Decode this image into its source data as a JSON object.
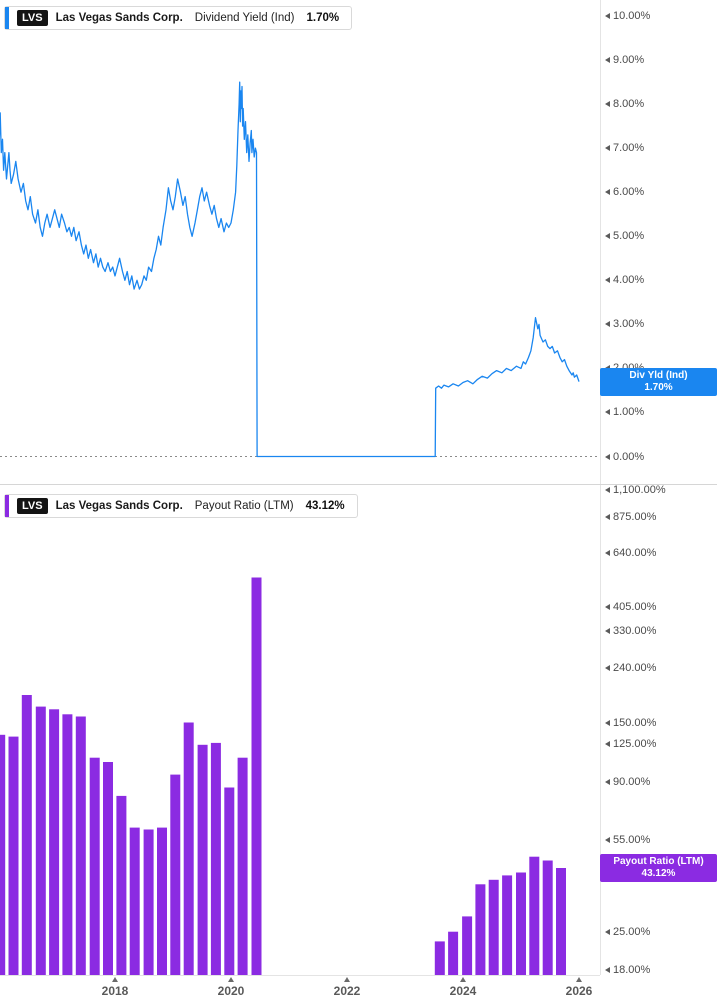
{
  "colors": {
    "blue": "#1a86f0",
    "purple": "#8b2be2",
    "axis_text": "#4a4a4a",
    "zero_line": "#8a8a8a"
  },
  "top_panel": {
    "legend": {
      "ticker": "LVS",
      "company": "Las Vegas Sands Corp.",
      "metric": "Dividend Yield (Ind)",
      "value": "1.70%"
    },
    "badge": {
      "line1": "Div Yld (Ind)",
      "line2": "1.70%"
    },
    "axis_ticks": [
      "10.00%",
      "9.00%",
      "8.00%",
      "7.00%",
      "6.00%",
      "5.00%",
      "4.00%",
      "3.00%",
      "2.00%",
      "1.00%",
      "0.00%"
    ]
  },
  "bottom_panel": {
    "legend": {
      "ticker": "LVS",
      "company": "Las Vegas Sands Corp.",
      "metric": "Payout Ratio (LTM)",
      "value": "43.12%"
    },
    "badge": {
      "line1": "Payout Ratio (LTM)",
      "line2": "43.12%"
    },
    "axis_ticks": [
      "1,100.00%",
      "875.00%",
      "640.00%",
      "405.00%",
      "330.00%",
      "240.00%",
      "150.00%",
      "125.00%",
      "90.00%",
      "55.00%",
      "25.00%",
      "18.00%"
    ]
  },
  "x_axis": {
    "years": [
      "2018",
      "2020",
      "2022",
      "2024",
      "2026"
    ]
  },
  "chart_data": [
    {
      "type": "line",
      "title": "LVS Dividend Yield (Ind)",
      "unit": "percent",
      "color": "#1a86f0",
      "x_axis": {
        "min": 2016,
        "max": 2026.2,
        "tick_years": [
          2018,
          2020,
          2022,
          2024,
          2026
        ]
      },
      "y_axis": {
        "scale": "linear",
        "min": 0,
        "max": 10.3,
        "ticks": [
          10,
          9,
          8,
          7,
          6,
          5,
          4,
          3,
          2,
          1,
          0
        ]
      },
      "zero_line_dotted": true,
      "last_value": 1.7,
      "points": [
        [
          2016.0,
          7.0
        ],
        [
          2016.02,
          7.8
        ],
        [
          2016.04,
          6.9
        ],
        [
          2016.06,
          7.2
        ],
        [
          2016.08,
          6.5
        ],
        [
          2016.1,
          6.9
        ],
        [
          2016.13,
          6.3
        ],
        [
          2016.15,
          6.6
        ],
        [
          2016.17,
          6.9
        ],
        [
          2016.19,
          6.5
        ],
        [
          2016.21,
          6.2
        ],
        [
          2016.25,
          6.4
        ],
        [
          2016.29,
          6.7
        ],
        [
          2016.33,
          6.3
        ],
        [
          2016.38,
          6.0
        ],
        [
          2016.42,
          6.2
        ],
        [
          2016.46,
          5.8
        ],
        [
          2016.5,
          5.6
        ],
        [
          2016.54,
          5.9
        ],
        [
          2016.58,
          5.5
        ],
        [
          2016.63,
          5.3
        ],
        [
          2016.67,
          5.6
        ],
        [
          2016.71,
          5.2
        ],
        [
          2016.75,
          5.0
        ],
        [
          2016.79,
          5.3
        ],
        [
          2016.83,
          5.5
        ],
        [
          2016.88,
          5.2
        ],
        [
          2016.92,
          5.4
        ],
        [
          2016.96,
          5.6
        ],
        [
          2017.0,
          5.4
        ],
        [
          2017.04,
          5.2
        ],
        [
          2017.08,
          5.5
        ],
        [
          2017.13,
          5.3
        ],
        [
          2017.17,
          5.1
        ],
        [
          2017.21,
          5.2
        ],
        [
          2017.25,
          5.0
        ],
        [
          2017.29,
          5.2
        ],
        [
          2017.33,
          4.9
        ],
        [
          2017.38,
          5.1
        ],
        [
          2017.42,
          4.8
        ],
        [
          2017.46,
          4.6
        ],
        [
          2017.5,
          4.8
        ],
        [
          2017.54,
          4.5
        ],
        [
          2017.58,
          4.7
        ],
        [
          2017.63,
          4.4
        ],
        [
          2017.67,
          4.6
        ],
        [
          2017.71,
          4.3
        ],
        [
          2017.75,
          4.5
        ],
        [
          2017.79,
          4.3
        ],
        [
          2017.83,
          4.2
        ],
        [
          2017.88,
          4.4
        ],
        [
          2017.92,
          4.2
        ],
        [
          2017.96,
          4.3
        ],
        [
          2018.0,
          4.1
        ],
        [
          2018.04,
          4.3
        ],
        [
          2018.08,
          4.5
        ],
        [
          2018.13,
          4.2
        ],
        [
          2018.17,
          4.0
        ],
        [
          2018.21,
          4.2
        ],
        [
          2018.25,
          3.9
        ],
        [
          2018.29,
          4.1
        ],
        [
          2018.33,
          3.8
        ],
        [
          2018.38,
          4.0
        ],
        [
          2018.42,
          3.8
        ],
        [
          2018.46,
          3.9
        ],
        [
          2018.5,
          4.1
        ],
        [
          2018.54,
          4.0
        ],
        [
          2018.58,
          4.3
        ],
        [
          2018.63,
          4.2
        ],
        [
          2018.67,
          4.5
        ],
        [
          2018.71,
          4.7
        ],
        [
          2018.75,
          5.0
        ],
        [
          2018.79,
          4.8
        ],
        [
          2018.83,
          5.2
        ],
        [
          2018.88,
          5.6
        ],
        [
          2018.92,
          6.1
        ],
        [
          2018.96,
          5.8
        ],
        [
          2019.0,
          5.6
        ],
        [
          2019.04,
          5.9
        ],
        [
          2019.08,
          6.3
        ],
        [
          2019.13,
          6.0
        ],
        [
          2019.17,
          5.7
        ],
        [
          2019.21,
          5.9
        ],
        [
          2019.25,
          5.5
        ],
        [
          2019.29,
          5.2
        ],
        [
          2019.33,
          5.0
        ],
        [
          2019.38,
          5.3
        ],
        [
          2019.42,
          5.6
        ],
        [
          2019.46,
          5.9
        ],
        [
          2019.5,
          6.1
        ],
        [
          2019.54,
          5.8
        ],
        [
          2019.58,
          6.0
        ],
        [
          2019.63,
          5.7
        ],
        [
          2019.67,
          5.5
        ],
        [
          2019.71,
          5.7
        ],
        [
          2019.75,
          5.4
        ],
        [
          2019.79,
          5.2
        ],
        [
          2019.83,
          5.4
        ],
        [
          2019.88,
          5.1
        ],
        [
          2019.92,
          5.3
        ],
        [
          2019.96,
          5.2
        ],
        [
          2020.0,
          5.3
        ],
        [
          2020.04,
          5.6
        ],
        [
          2020.08,
          6.0
        ],
        [
          2020.1,
          6.6
        ],
        [
          2020.12,
          7.4
        ],
        [
          2020.14,
          8.0
        ],
        [
          2020.15,
          8.5
        ],
        [
          2020.16,
          7.6
        ],
        [
          2020.17,
          8.3
        ],
        [
          2020.18,
          7.9
        ],
        [
          2020.19,
          8.4
        ],
        [
          2020.2,
          7.5
        ],
        [
          2020.21,
          7.9
        ],
        [
          2020.23,
          7.2
        ],
        [
          2020.25,
          7.6
        ],
        [
          2020.27,
          6.9
        ],
        [
          2020.29,
          7.3
        ],
        [
          2020.31,
          6.7
        ],
        [
          2020.33,
          7.1
        ],
        [
          2020.35,
          7.4
        ],
        [
          2020.36,
          6.9
        ],
        [
          2020.38,
          7.2
        ],
        [
          2020.4,
          6.8
        ],
        [
          2020.42,
          7.0
        ],
        [
          2020.44,
          6.9
        ],
        [
          2020.45,
          0.0
        ],
        [
          2023.52,
          0.0
        ],
        [
          2023.53,
          1.55
        ],
        [
          2023.58,
          1.6
        ],
        [
          2023.63,
          1.55
        ],
        [
          2023.67,
          1.62
        ],
        [
          2023.75,
          1.58
        ],
        [
          2023.83,
          1.65
        ],
        [
          2023.92,
          1.6
        ],
        [
          2024.0,
          1.68
        ],
        [
          2024.08,
          1.72
        ],
        [
          2024.17,
          1.65
        ],
        [
          2024.25,
          1.75
        ],
        [
          2024.33,
          1.82
        ],
        [
          2024.42,
          1.78
        ],
        [
          2024.5,
          1.88
        ],
        [
          2024.58,
          1.95
        ],
        [
          2024.67,
          1.9
        ],
        [
          2024.75,
          2.0
        ],
        [
          2024.83,
          1.95
        ],
        [
          2024.92,
          2.05
        ],
        [
          2025.0,
          2.0
        ],
        [
          2025.04,
          2.15
        ],
        [
          2025.08,
          2.1
        ],
        [
          2025.13,
          2.25
        ],
        [
          2025.17,
          2.4
        ],
        [
          2025.21,
          2.7
        ],
        [
          2025.25,
          3.15
        ],
        [
          2025.29,
          2.9
        ],
        [
          2025.31,
          3.0
        ],
        [
          2025.33,
          2.75
        ],
        [
          2025.38,
          2.6
        ],
        [
          2025.42,
          2.65
        ],
        [
          2025.46,
          2.5
        ],
        [
          2025.5,
          2.45
        ],
        [
          2025.54,
          2.5
        ],
        [
          2025.58,
          2.35
        ],
        [
          2025.63,
          2.4
        ],
        [
          2025.67,
          2.25
        ],
        [
          2025.71,
          2.15
        ],
        [
          2025.75,
          2.2
        ],
        [
          2025.79,
          2.05
        ],
        [
          2025.83,
          1.95
        ],
        [
          2025.88,
          1.85
        ],
        [
          2025.9,
          1.9
        ],
        [
          2025.92,
          1.8
        ],
        [
          2025.96,
          1.85
        ],
        [
          2026.0,
          1.7
        ]
      ]
    },
    {
      "type": "bar",
      "title": "LVS Payout Ratio (LTM)",
      "unit": "percent",
      "color": "#8b2be2",
      "y_axis": {
        "scale": "log",
        "min": 18,
        "max": 1100,
        "ticks": [
          1100,
          875,
          640,
          405,
          330,
          240,
          150,
          125,
          90,
          55,
          25,
          18
        ]
      },
      "last_value": 43.12,
      "bars": [
        [
          2016.02,
          135
        ],
        [
          2016.25,
          133
        ],
        [
          2016.48,
          190
        ],
        [
          2016.72,
          172
        ],
        [
          2016.95,
          168
        ],
        [
          2017.18,
          161
        ],
        [
          2017.41,
          158
        ],
        [
          2017.65,
          111
        ],
        [
          2017.88,
          107
        ],
        [
          2018.11,
          80
        ],
        [
          2018.34,
          61
        ],
        [
          2018.58,
          60
        ],
        [
          2018.81,
          61
        ],
        [
          2019.04,
          96
        ],
        [
          2019.27,
          150
        ],
        [
          2019.51,
          124
        ],
        [
          2019.74,
          126
        ],
        [
          2019.97,
          86
        ],
        [
          2020.2,
          111
        ],
        [
          2020.44,
          520
        ],
        [
          2023.6,
          23
        ],
        [
          2023.83,
          25
        ],
        [
          2024.07,
          28.5
        ],
        [
          2024.3,
          37.5
        ],
        [
          2024.53,
          39
        ],
        [
          2024.76,
          40.5
        ],
        [
          2025.0,
          41.5
        ],
        [
          2025.23,
          47.5
        ],
        [
          2025.46,
          46
        ],
        [
          2025.69,
          43.12
        ]
      ]
    }
  ]
}
